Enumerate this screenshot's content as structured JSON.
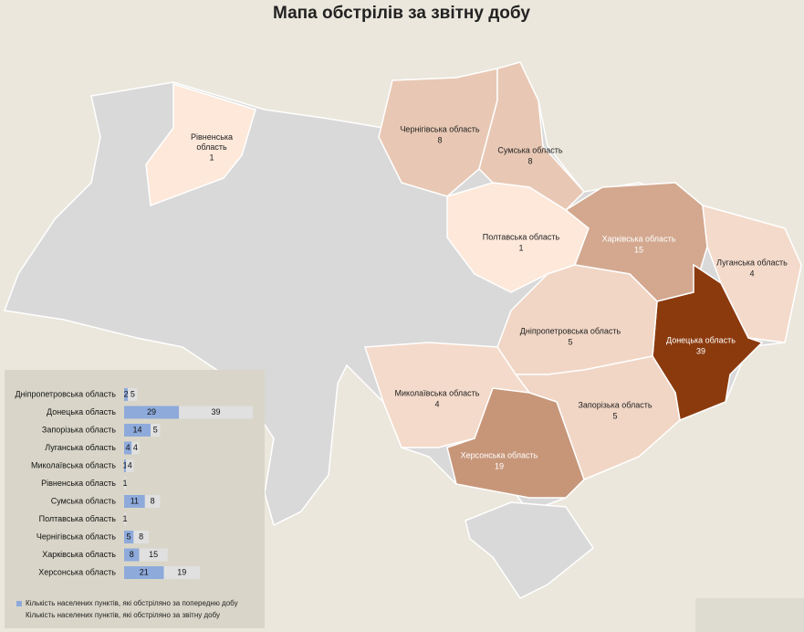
{
  "title": "Мапа обстрілів за звітну добу",
  "regions": [
    {
      "name": "Рівненська область",
      "value": 1
    },
    {
      "name": "Чернігівська область",
      "value": 8
    },
    {
      "name": "Сумська область",
      "value": 8
    },
    {
      "name": "Полтавська область",
      "value": 1
    },
    {
      "name": "Харківська область",
      "value": 15
    },
    {
      "name": "Луганська область",
      "value": 4
    },
    {
      "name": "Донецька область",
      "value": 39
    },
    {
      "name": "Дніпропетровська область",
      "value": 5
    },
    {
      "name": "Запорізька область",
      "value": 5
    },
    {
      "name": "Миколаївська область",
      "value": 4
    },
    {
      "name": "Херсонська область",
      "value": 19
    }
  ],
  "chart_data": {
    "type": "bar",
    "categories": [
      "Дніпропетровська область",
      "Донецька область",
      "Запорізька область",
      "Луганська область",
      "Миколаївська область",
      "Рівненська область",
      "Сумська область",
      "Полтавська область",
      "Чернігівська область",
      "Харківська область",
      "Херсонська область"
    ],
    "series": [
      {
        "name": "Кількість населених пунктів, які обстріляно за попередню добу",
        "color": "#8eaadb",
        "values": [
          2,
          29,
          14,
          4,
          1,
          null,
          11,
          null,
          5,
          8,
          21
        ]
      },
      {
        "name": "Кількість населених пунктів, які обстріляно за звітну добу",
        "color": "#e0e0e0",
        "values": [
          5,
          39,
          5,
          4,
          4,
          1,
          8,
          1,
          8,
          15,
          19
        ]
      }
    ]
  }
}
